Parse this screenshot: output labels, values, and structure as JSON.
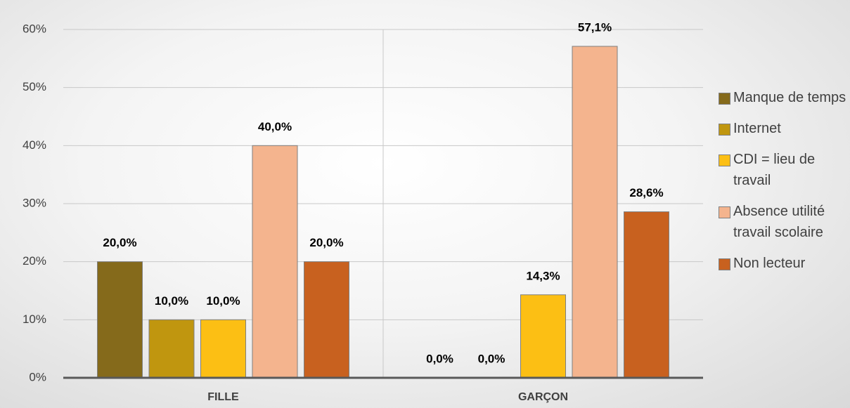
{
  "chart_data": {
    "type": "bar",
    "categories": [
      "FILLE",
      "GARÇON"
    ],
    "series": [
      {
        "name": "Manque de temps",
        "color": "#856a1b",
        "values": [
          20.0,
          0.0
        ],
        "value_labels": [
          "20,0%",
          "0,0%"
        ]
      },
      {
        "name": "Internet",
        "color": "#c0960f",
        "values": [
          10.0,
          0.0
        ],
        "value_labels": [
          "10,0%",
          "0,0%"
        ]
      },
      {
        "name": "CDI = lieu de travail",
        "color": "#fcbf14",
        "values": [
          10.0,
          14.3
        ],
        "value_labels": [
          "10,0%",
          "14,3%"
        ]
      },
      {
        "name": "Absence utilité travail scolaire",
        "color": "#f4b48e",
        "values": [
          40.0,
          57.1
        ],
        "value_labels": [
          "40,0%",
          "57,1%"
        ]
      },
      {
        "name": "Non lecteur",
        "color": "#c8611f",
        "values": [
          20.0,
          28.6
        ],
        "value_labels": [
          "20,0%",
          "28,6%"
        ]
      }
    ],
    "ylim": [
      0,
      60
    ],
    "yticks": [
      {
        "value": 0,
        "label": "0%"
      },
      {
        "value": 10,
        "label": "10%"
      },
      {
        "value": 20,
        "label": "20%"
      },
      {
        "value": 30,
        "label": "30%"
      },
      {
        "value": 40,
        "label": "40%"
      },
      {
        "value": 50,
        "label": "50%"
      },
      {
        "value": 60,
        "label": "60%"
      }
    ],
    "grid": true
  }
}
